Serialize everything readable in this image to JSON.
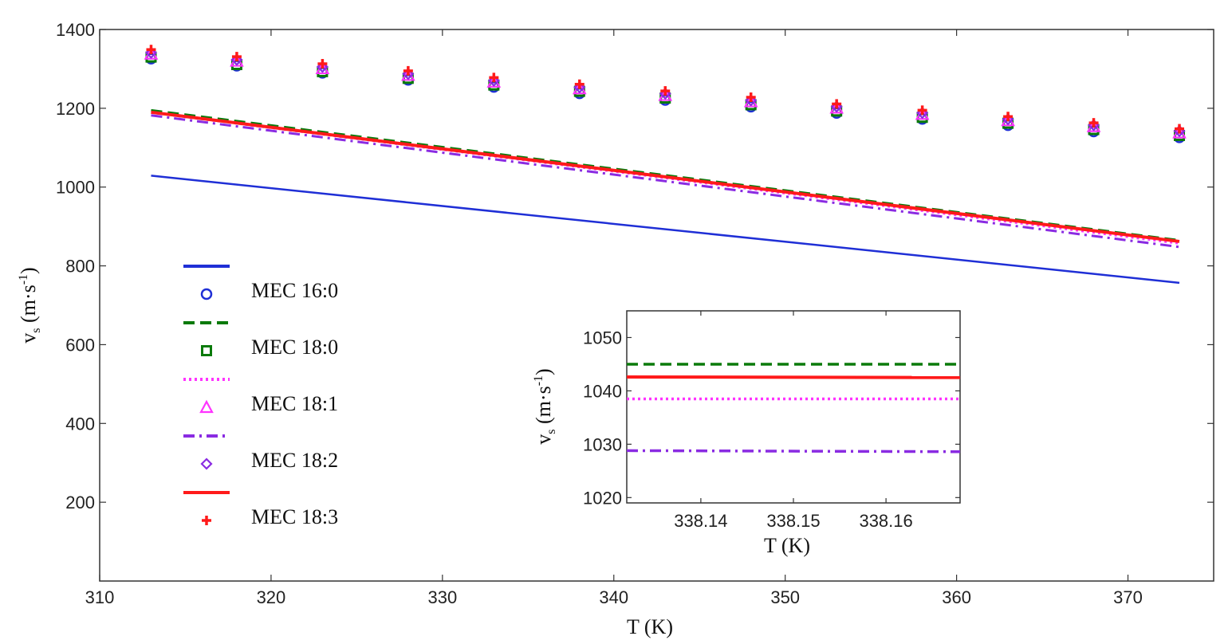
{
  "chart_data": [
    {
      "type": "line",
      "xlabel": "T (K)",
      "ylabel": {
        "main": "v",
        "sub": "s",
        "unit_open": " (m·s",
        "unit_sup": "-1",
        "unit_close": ")"
      },
      "xlim": [
        310,
        375
      ],
      "ylim": [
        0,
        1400
      ],
      "xticks": [
        310,
        320,
        330,
        340,
        350,
        360,
        370
      ],
      "yticks": [
        200,
        400,
        600,
        800,
        1000,
        1200,
        1400
      ],
      "grid": false,
      "legend": "left",
      "series": [
        {
          "name": "MEC 16:0",
          "color": "#1f2fd6",
          "line": "solid",
          "marker": "circle",
          "line_x": [
            313,
            373
          ],
          "line_y": [
            1029,
            757
          ],
          "x": [
            313,
            318,
            323,
            328,
            333,
            338,
            343,
            348,
            353,
            358,
            363,
            368,
            373
          ],
          "y": [
            1326,
            1308,
            1290,
            1272,
            1254,
            1238,
            1221,
            1204,
            1188,
            1173,
            1157,
            1141,
            1126
          ]
        },
        {
          "name": "MEC 18:0",
          "color": "#0a7a0a",
          "line": "dashed",
          "marker": "square",
          "line_x": [
            313,
            373
          ],
          "line_y": [
            1195,
            865
          ],
          "x": [
            313,
            318,
            323,
            328,
            333,
            338,
            343,
            348,
            353,
            358,
            363,
            368,
            373
          ],
          "y": [
            1330,
            1311,
            1293,
            1276,
            1259,
            1243,
            1226,
            1209,
            1193,
            1177,
            1162,
            1146,
            1131
          ]
        },
        {
          "name": "MEC 18:1",
          "color": "#ff33ff",
          "line": "dotted",
          "marker": "triangle",
          "line_x": [
            313,
            373
          ],
          "line_y": [
            1189,
            857
          ],
          "x": [
            313,
            318,
            323,
            328,
            333,
            338,
            343,
            348,
            353,
            358,
            363,
            368,
            373
          ],
          "y": [
            1338,
            1320,
            1301,
            1284,
            1267,
            1250,
            1233,
            1217,
            1201,
            1185,
            1169,
            1154,
            1138
          ]
        },
        {
          "name": "MEC 18:2",
          "color": "#8a2be2",
          "line": "dashdot",
          "marker": "diamond",
          "line_x": [
            313,
            373
          ],
          "line_y": [
            1182,
            848
          ],
          "x": [
            313,
            318,
            323,
            328,
            333,
            338,
            343,
            348,
            353,
            358,
            363,
            368,
            373
          ],
          "y": [
            1341,
            1323,
            1305,
            1287,
            1270,
            1253,
            1237,
            1220,
            1204,
            1188,
            1172,
            1157,
            1142
          ]
        },
        {
          "name": "MEC 18:3",
          "color": "#ff1a1a",
          "line": "solid",
          "marker": "plus",
          "line_x": [
            313,
            373
          ],
          "line_y": [
            1190,
            862
          ],
          "x": [
            313,
            318,
            323,
            328,
            333,
            338,
            343,
            348,
            353,
            358,
            363,
            368,
            373
          ],
          "y": [
            1349,
            1331,
            1313,
            1295,
            1278,
            1261,
            1244,
            1228,
            1211,
            1195,
            1179,
            1163,
            1148
          ]
        }
      ]
    },
    {
      "type": "line",
      "xlabel": "T (K)",
      "ylabel": {
        "main": "v",
        "sub": "s",
        "unit_open": " (m·s",
        "unit_sup": "-1",
        "unit_close": ")"
      },
      "xlim": [
        338.132,
        338.168
      ],
      "ylim": [
        1019,
        1055
      ],
      "xticks": [
        338.14,
        338.15,
        338.16
      ],
      "xtick_labels": [
        "338.14",
        "338.15",
        "338.16"
      ],
      "yticks": [
        1020,
        1030,
        1040,
        1050
      ],
      "grid": false,
      "series": [
        {
          "name": "MEC 18:0",
          "color": "#0a7a0a",
          "line": "dashed",
          "x": [
            338.132,
            338.168
          ],
          "y": [
            1045.0,
            1045.0
          ]
        },
        {
          "name": "MEC 18:3",
          "color": "#ff1a1a",
          "line": "solid",
          "x": [
            338.132,
            338.168
          ],
          "y": [
            1042.6,
            1042.5
          ]
        },
        {
          "name": "MEC 18:1",
          "color": "#ff33ff",
          "line": "dotted",
          "x": [
            338.132,
            338.168
          ],
          "y": [
            1038.5,
            1038.5
          ]
        },
        {
          "name": "MEC 18:2",
          "color": "#8a2be2",
          "line": "dashdot",
          "x": [
            338.132,
            338.168
          ],
          "y": [
            1028.8,
            1028.6
          ]
        }
      ]
    }
  ]
}
